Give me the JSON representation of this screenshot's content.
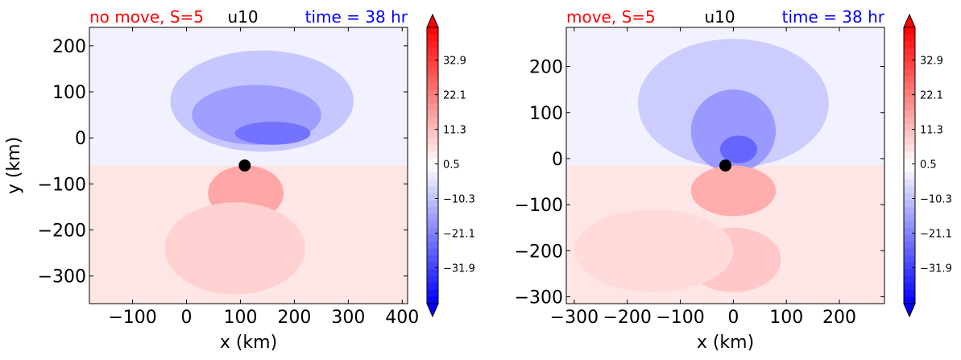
{
  "chart_data": [
    {
      "type": "contour",
      "title_left": "no move, S=5",
      "title_center": "u10",
      "title_right": "time = 38 hr",
      "xlabel": "x (km)",
      "ylabel": "y (km)",
      "xlim": [
        -180,
        410
      ],
      "ylim": [
        -360,
        240
      ],
      "xticks": [
        -100,
        0,
        100,
        200,
        300,
        400
      ],
      "yticks": [
        200,
        100,
        0,
        -100,
        -200,
        -300
      ],
      "xtick_labels": [
        "−100",
        "0",
        "100",
        "200",
        "300",
        "400"
      ],
      "ytick_labels": [
        "200",
        "100",
        "0",
        "−100",
        "−200",
        "−300"
      ],
      "center_marker": {
        "x": 108,
        "y": -60
      },
      "field_features": [
        {
          "kind": "neg",
          "cx": 140,
          "cy": 80,
          "rx": 170,
          "ry": 110,
          "level": 0.22
        },
        {
          "kind": "neg",
          "cx": 130,
          "cy": 50,
          "rx": 120,
          "ry": 65,
          "level": 0.38
        },
        {
          "kind": "neg",
          "cx": 160,
          "cy": 10,
          "rx": 70,
          "ry": 25,
          "level": 0.55
        },
        {
          "kind": "pos",
          "cx": 110,
          "cy": -120,
          "rx": 70,
          "ry": 60,
          "level": 0.35
        },
        {
          "kind": "pos",
          "cx": 90,
          "cy": -240,
          "rx": 130,
          "ry": 100,
          "level": 0.18
        }
      ],
      "colorbar": {
        "min": -43.1,
        "max": 43.1,
        "extend": "both",
        "tick_values": [
          32.9,
          22.1,
          11.3,
          0.5,
          -10.3,
          -21.1,
          -31.9
        ],
        "tick_labels": [
          "32.9",
          "22.1",
          "11.3",
          "0.5",
          "−10.3",
          "−21.1",
          "−31.9"
        ]
      }
    },
    {
      "type": "contour",
      "title_left": "move, S=5",
      "title_center": "u10",
      "title_right": "time = 38 hr",
      "xlabel": "x (km)",
      "ylabel": "",
      "xlim": [
        -315,
        285
      ],
      "ylim": [
        -315,
        285
      ],
      "xticks": [
        -300,
        -200,
        -100,
        0,
        100,
        200
      ],
      "yticks": [
        200,
        100,
        0,
        -100,
        -200,
        -300
      ],
      "xtick_labels": [
        "−300",
        "−200",
        "−100",
        "0",
        "100",
        "200"
      ],
      "ytick_labels": [
        "200",
        "100",
        "0",
        "−100",
        "−200",
        "−300"
      ],
      "center_marker": {
        "x": -15,
        "y": -15
      },
      "field_features": [
        {
          "kind": "neg",
          "cx": 0,
          "cy": 120,
          "rx": 180,
          "ry": 140,
          "level": 0.2
        },
        {
          "kind": "neg",
          "cx": 0,
          "cy": 60,
          "rx": 80,
          "ry": 90,
          "level": 0.4
        },
        {
          "kind": "neg",
          "cx": 10,
          "cy": 20,
          "rx": 35,
          "ry": 30,
          "level": 0.6
        },
        {
          "kind": "pos",
          "cx": 0,
          "cy": -70,
          "rx": 80,
          "ry": 55,
          "level": 0.32
        },
        {
          "kind": "pos",
          "cx": 0,
          "cy": -220,
          "rx": 90,
          "ry": 70,
          "level": 0.22
        },
        {
          "kind": "pos",
          "cx": -150,
          "cy": -200,
          "rx": 150,
          "ry": 90,
          "level": 0.14
        }
      ],
      "colorbar": {
        "min": -43.1,
        "max": 43.1,
        "extend": "both",
        "tick_values": [
          32.9,
          22.1,
          11.3,
          0.5,
          -10.3,
          -21.1,
          -31.9
        ],
        "tick_labels": [
          "32.9",
          "22.1",
          "11.3",
          "0.5",
          "−10.3",
          "−21.1",
          "−31.9"
        ]
      }
    }
  ],
  "colors": {
    "title_left": "#ff0000",
    "title_center": "#000000",
    "title_right": "#0000ff",
    "neg_max": "#0000ff",
    "pos_max": "#ff0000",
    "neutral": "#ffffff",
    "marker": "#000000"
  }
}
